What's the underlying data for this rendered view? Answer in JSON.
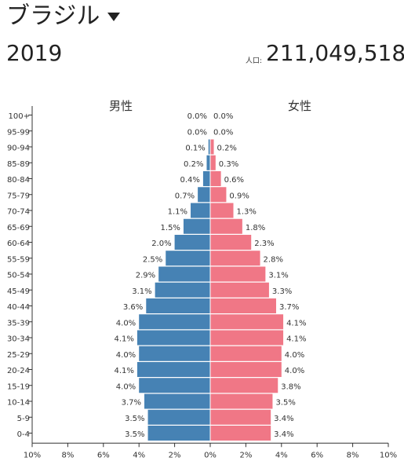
{
  "header": {
    "country": "ブラジル",
    "year": "2019",
    "population_label": "人口:",
    "population_value": "211,049,518"
  },
  "colors": {
    "male": "#4682b4",
    "female": "#f07786"
  },
  "chart_data": {
    "type": "bar",
    "orientation": "horizontal-butterfly",
    "series_labels": {
      "male": "男性",
      "female": "女性"
    },
    "categories": [
      "100+",
      "95-99",
      "90-94",
      "85-89",
      "80-84",
      "75-79",
      "70-74",
      "65-69",
      "60-64",
      "55-59",
      "50-54",
      "45-49",
      "40-44",
      "35-39",
      "30-34",
      "25-29",
      "20-24",
      "15-19",
      "10-14",
      "5-9",
      "0-4"
    ],
    "male": [
      0.0,
      0.0,
      0.1,
      0.2,
      0.4,
      0.7,
      1.1,
      1.5,
      2.0,
      2.5,
      2.9,
      3.1,
      3.6,
      4.0,
      4.1,
      4.0,
      4.1,
      4.0,
      3.7,
      3.5,
      3.5
    ],
    "female": [
      0.0,
      0.0,
      0.2,
      0.3,
      0.6,
      0.9,
      1.3,
      1.8,
      2.3,
      2.8,
      3.1,
      3.3,
      3.7,
      4.1,
      4.1,
      4.0,
      4.0,
      3.8,
      3.5,
      3.4,
      3.4
    ],
    "male_labels": [
      "0.0%",
      "0.0%",
      "0.1%",
      "0.2%",
      "0.4%",
      "0.7%",
      "1.1%",
      "1.5%",
      "2.0%",
      "2.5%",
      "2.9%",
      "3.1%",
      "3.6%",
      "4.0%",
      "4.1%",
      "4.0%",
      "4.1%",
      "4.0%",
      "3.7%",
      "3.5%",
      "3.5%"
    ],
    "female_labels": [
      "0.0%",
      "0.0%",
      "0.2%",
      "0.3%",
      "0.6%",
      "0.9%",
      "1.3%",
      "1.8%",
      "2.3%",
      "2.8%",
      "3.1%",
      "3.3%",
      "3.7%",
      "4.1%",
      "4.1%",
      "4.0%",
      "4.0%",
      "3.8%",
      "3.5%",
      "3.4%",
      "3.4%"
    ],
    "xlim": [
      0,
      10
    ],
    "x_ticks": [
      "10%",
      "8%",
      "6%",
      "4%",
      "2%",
      "0%",
      "2%",
      "4%",
      "6%",
      "8%",
      "10%"
    ],
    "unit": "%"
  }
}
